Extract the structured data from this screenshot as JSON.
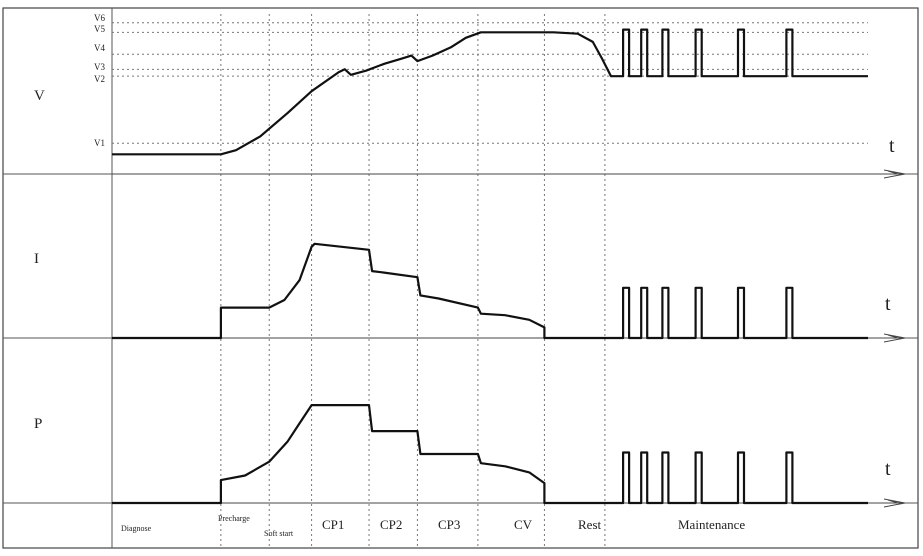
{
  "chart_data": {
    "type": "line",
    "panels": [
      {
        "label": "V",
        "axis_label": "t",
        "level_labels": [
          "V6",
          "V5",
          "V4",
          "V3",
          "V2",
          "V1"
        ],
        "series": [
          {
            "values": [
              [
                0,
                0.02
              ],
              [
                1.8,
                0.02
              ],
              [
                2.05,
                0.05
              ],
              [
                2.45,
                0.15
              ],
              [
                2.9,
                0.32
              ],
              [
                3.3,
                0.48
              ],
              [
                3.75,
                0.62
              ],
              [
                3.85,
                0.64
              ],
              [
                3.95,
                0.6
              ],
              [
                4.2,
                0.63
              ],
              [
                4.5,
                0.68
              ],
              [
                4.8,
                0.72
              ],
              [
                4.95,
                0.74
              ],
              [
                5.05,
                0.7
              ],
              [
                5.3,
                0.74
              ],
              [
                5.6,
                0.8
              ],
              [
                5.85,
                0.87
              ],
              [
                6.1,
                0.91
              ],
              [
                6.5,
                0.91
              ],
              [
                7.3,
                0.91
              ],
              [
                7.7,
                0.9
              ],
              [
                7.95,
                0.84
              ],
              [
                8.1,
                0.72
              ],
              [
                8.25,
                0.59
              ],
              [
                8.45,
                0.59
              ],
              [
                8.45,
                0.93
              ],
              [
                8.55,
                0.93
              ],
              [
                8.55,
                0.59
              ],
              [
                8.75,
                0.59
              ],
              [
                8.75,
                0.93
              ],
              [
                8.85,
                0.93
              ],
              [
                8.85,
                0.59
              ],
              [
                9.1,
                0.59
              ],
              [
                9.1,
                0.93
              ],
              [
                9.2,
                0.93
              ],
              [
                9.2,
                0.59
              ],
              [
                9.65,
                0.59
              ],
              [
                9.65,
                0.93
              ],
              [
                9.75,
                0.93
              ],
              [
                9.75,
                0.59
              ],
              [
                10.35,
                0.59
              ],
              [
                10.35,
                0.93
              ],
              [
                10.45,
                0.93
              ],
              [
                10.45,
                0.59
              ],
              [
                11.15,
                0.59
              ],
              [
                11.15,
                0.93
              ],
              [
                11.25,
                0.93
              ],
              [
                11.25,
                0.59
              ],
              [
                12.5,
                0.59
              ]
            ]
          }
        ]
      },
      {
        "label": "I",
        "axis_label": "t",
        "series": [
          {
            "values": [
              [
                0,
                0
              ],
              [
                1.8,
                0
              ],
              [
                1.8,
                0.2
              ],
              [
                2.6,
                0.2
              ],
              [
                2.85,
                0.25
              ],
              [
                3.1,
                0.38
              ],
              [
                3.3,
                0.6
              ],
              [
                3.35,
                0.62
              ],
              [
                4.25,
                0.58
              ],
              [
                4.3,
                0.44
              ],
              [
                4.5,
                0.43
              ],
              [
                5.05,
                0.4
              ],
              [
                5.1,
                0.28
              ],
              [
                5.4,
                0.26
              ],
              [
                6.05,
                0.2
              ],
              [
                6.1,
                0.16
              ],
              [
                6.5,
                0.15
              ],
              [
                6.9,
                0.12
              ],
              [
                7.15,
                0.07
              ],
              [
                7.15,
                0
              ],
              [
                8.45,
                0
              ],
              [
                8.45,
                0.33
              ],
              [
                8.55,
                0.33
              ],
              [
                8.55,
                0
              ],
              [
                8.75,
                0
              ],
              [
                8.75,
                0.33
              ],
              [
                8.85,
                0.33
              ],
              [
                8.85,
                0
              ],
              [
                9.1,
                0
              ],
              [
                9.1,
                0.33
              ],
              [
                9.2,
                0.33
              ],
              [
                9.2,
                0
              ],
              [
                9.65,
                0
              ],
              [
                9.65,
                0.33
              ],
              [
                9.75,
                0.33
              ],
              [
                9.75,
                0
              ],
              [
                10.35,
                0
              ],
              [
                10.35,
                0.33
              ],
              [
                10.45,
                0.33
              ],
              [
                10.45,
                0
              ],
              [
                11.15,
                0
              ],
              [
                11.15,
                0.33
              ],
              [
                11.25,
                0.33
              ],
              [
                11.25,
                0
              ],
              [
                12.5,
                0
              ]
            ]
          }
        ]
      },
      {
        "label": "P",
        "axis_label": "t",
        "series": [
          {
            "values": [
              [
                0,
                0
              ],
              [
                1.8,
                0
              ],
              [
                1.8,
                0.15
              ],
              [
                2.2,
                0.18
              ],
              [
                2.6,
                0.27
              ],
              [
                2.9,
                0.4
              ],
              [
                3.1,
                0.52
              ],
              [
                3.3,
                0.64
              ],
              [
                4.25,
                0.64
              ],
              [
                4.3,
                0.47
              ],
              [
                5.05,
                0.47
              ],
              [
                5.1,
                0.32
              ],
              [
                6.05,
                0.32
              ],
              [
                6.1,
                0.26
              ],
              [
                6.5,
                0.24
              ],
              [
                6.9,
                0.2
              ],
              [
                7.15,
                0.13
              ],
              [
                7.15,
                0
              ],
              [
                8.45,
                0
              ],
              [
                8.45,
                0.33
              ],
              [
                8.55,
                0.33
              ],
              [
                8.55,
                0
              ],
              [
                8.75,
                0
              ],
              [
                8.75,
                0.33
              ],
              [
                8.85,
                0.33
              ],
              [
                8.85,
                0
              ],
              [
                9.1,
                0
              ],
              [
                9.1,
                0.33
              ],
              [
                9.2,
                0.33
              ],
              [
                9.2,
                0
              ],
              [
                9.65,
                0
              ],
              [
                9.65,
                0.33
              ],
              [
                9.75,
                0.33
              ],
              [
                9.75,
                0
              ],
              [
                10.35,
                0
              ],
              [
                10.35,
                0.33
              ],
              [
                10.45,
                0.33
              ],
              [
                10.45,
                0
              ],
              [
                11.15,
                0
              ],
              [
                11.15,
                0.33
              ],
              [
                11.25,
                0.33
              ],
              [
                11.25,
                0
              ],
              [
                12.5,
                0
              ]
            ]
          }
        ]
      }
    ],
    "phases": [
      "Diagnose",
      "Precharge",
      "Soft start",
      "CP1",
      "CP2",
      "CP3",
      "CV",
      "Rest",
      "Maintenance"
    ],
    "phase_boundaries": [
      0,
      1.8,
      2.6,
      3.3,
      4.25,
      5.05,
      6.05,
      7.15,
      8.15,
      12.5
    ],
    "grid": true
  }
}
